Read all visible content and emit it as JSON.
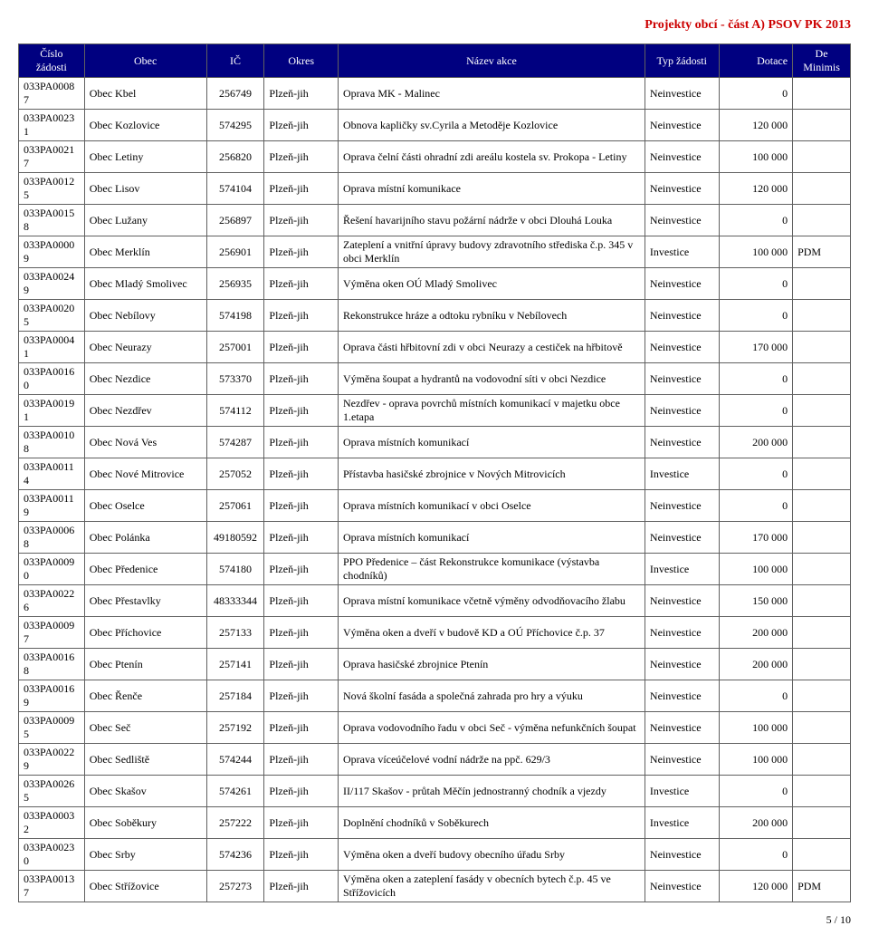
{
  "page_title": "Projekty obcí - část A) PSOV PK 2013",
  "footer": "5 / 10",
  "columns": [
    "Číslo žádosti",
    "Obec",
    "IČ",
    "Okres",
    "Název akce",
    "Typ žádosti",
    "Dotace",
    "De Minimis"
  ],
  "rows": [
    [
      "033PA00087",
      "Obec Kbel",
      "256749",
      "Plzeň-jih",
      "Oprava MK - Malinec",
      "Neinvestice",
      "0",
      ""
    ],
    [
      "033PA00231",
      "Obec Kozlovice",
      "574295",
      "Plzeň-jih",
      "Obnova kapličky sv.Cyrila a Metoděje Kozlovice",
      "Neinvestice",
      "120 000",
      ""
    ],
    [
      "033PA00217",
      "Obec Letiny",
      "256820",
      "Plzeň-jih",
      "Oprava čelní části ohradní zdi areálu kostela sv. Prokopa - Letiny",
      "Neinvestice",
      "100 000",
      ""
    ],
    [
      "033PA00125",
      "Obec Lisov",
      "574104",
      "Plzeň-jih",
      "Oprava místní komunikace",
      "Neinvestice",
      "120 000",
      ""
    ],
    [
      "033PA00158",
      "Obec Lužany",
      "256897",
      "Plzeň-jih",
      "Řešení havarijního stavu požární nádrže v obci Dlouhá Louka",
      "Neinvestice",
      "0",
      ""
    ],
    [
      "033PA00009",
      "Obec Merklín",
      "256901",
      "Plzeň-jih",
      "Zateplení a vnitřní úpravy budovy zdravotního střediska č.p. 345 v obci Merklín",
      "Investice",
      "100 000",
      "PDM"
    ],
    [
      "033PA00249",
      "Obec Mladý Smolivec",
      "256935",
      "Plzeň-jih",
      "Výměna oken OÚ Mladý Smolivec",
      "Neinvestice",
      "0",
      ""
    ],
    [
      "033PA00205",
      "Obec Nebílovy",
      "574198",
      "Plzeň-jih",
      "Rekonstrukce hráze a odtoku rybníku v Nebílovech",
      "Neinvestice",
      "0",
      ""
    ],
    [
      "033PA00041",
      "Obec Neurazy",
      "257001",
      "Plzeň-jih",
      "Oprava části hřbitovní zdi v obci Neurazy a cestiček na hřbitově",
      "Neinvestice",
      "170 000",
      ""
    ],
    [
      "033PA00160",
      "Obec Nezdice",
      "573370",
      "Plzeň-jih",
      "Výměna šoupat a hydrantů na vodovodní síti v obci Nezdice",
      "Neinvestice",
      "0",
      ""
    ],
    [
      "033PA00191",
      "Obec Nezdřev",
      "574112",
      "Plzeň-jih",
      "Nezdřev - oprava povrchů místních komunikací v majetku obce 1.etapa",
      "Neinvestice",
      "0",
      ""
    ],
    [
      "033PA00108",
      "Obec Nová Ves",
      "574287",
      "Plzeň-jih",
      "Oprava místních komunikací",
      "Neinvestice",
      "200 000",
      ""
    ],
    [
      "033PA00114",
      "Obec Nové Mitrovice",
      "257052",
      "Plzeň-jih",
      "Přístavba hasičské zbrojnice v Nových Mitrovicích",
      "Investice",
      "0",
      ""
    ],
    [
      "033PA00119",
      "Obec Oselce",
      "257061",
      "Plzeň-jih",
      "Oprava místních komunikací v obci Oselce",
      "Neinvestice",
      "0",
      ""
    ],
    [
      "033PA00068",
      "Obec Polánka",
      "49180592",
      "Plzeň-jih",
      "Oprava místních komunikací",
      "Neinvestice",
      "170 000",
      ""
    ],
    [
      "033PA00090",
      "Obec Předenice",
      "574180",
      "Plzeň-jih",
      " PPO Předenice – část Rekonstrukce komunikace (výstavba chodníků)",
      "Investice",
      "100 000",
      ""
    ],
    [
      "033PA00226",
      "Obec Přestavlky",
      "48333344",
      "Plzeň-jih",
      "Oprava místní komunikace včetně výměny odvodňovacího žlabu",
      "Neinvestice",
      "150 000",
      ""
    ],
    [
      "033PA00097",
      "Obec Příchovice",
      "257133",
      "Plzeň-jih",
      "Výměna oken a dveří v budově KD a OÚ Příchovice č.p. 37",
      "Neinvestice",
      "200 000",
      ""
    ],
    [
      "033PA00168",
      "Obec Ptenín",
      "257141",
      "Plzeň-jih",
      "Oprava hasičské zbrojnice Ptenín",
      "Neinvestice",
      "200 000",
      ""
    ],
    [
      "033PA00169",
      "Obec Řenče",
      "257184",
      "Plzeň-jih",
      "Nová školní fasáda a společná zahrada pro hry a výuku",
      "Neinvestice",
      "0",
      ""
    ],
    [
      "033PA00095",
      "Obec Seč",
      "257192",
      "Plzeň-jih",
      "Oprava vodovodního řadu v obci Seč - výměna nefunkčních šoupat",
      "Neinvestice",
      "100 000",
      ""
    ],
    [
      "033PA00229",
      "Obec Sedliště",
      "574244",
      "Plzeň-jih",
      "Oprava víceúčelové vodní nádrže na ppč. 629/3",
      "Neinvestice",
      "100 000",
      ""
    ],
    [
      "033PA00265",
      "Obec Skašov",
      "574261",
      "Plzeň-jih",
      "II/117 Skašov - průtah Měčín jednostranný chodník a vjezdy",
      "Investice",
      "0",
      ""
    ],
    [
      "033PA00032",
      "Obec Soběkury",
      "257222",
      "Plzeň-jih",
      "Doplnění chodníků v Soběkurech",
      "Investice",
      "200 000",
      ""
    ],
    [
      "033PA00230",
      "Obec Srby",
      "574236",
      "Plzeň-jih",
      "Výměna oken a dveří budovy obecního úřadu Srby",
      "Neinvestice",
      "0",
      ""
    ],
    [
      "033PA00137",
      "Obec Střížovice",
      "257273",
      "Plzeň-jih",
      "Výměna oken a zateplení fasády v obecních bytech č.p. 45 ve Střížovicích",
      "Neinvestice",
      "120 000",
      "PDM"
    ]
  ]
}
